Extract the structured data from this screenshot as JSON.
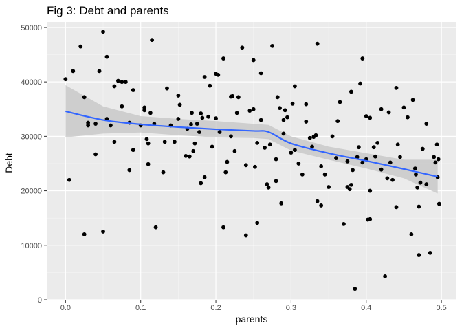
{
  "chart_data": {
    "type": "scatter",
    "title": "Fig 3: Debt and parents",
    "xlabel": "parents",
    "ylabel": "Debt",
    "xlim": [
      -0.025,
      0.52
    ],
    "ylim": [
      0,
      51000
    ],
    "x_ticks": [
      0.0,
      0.1,
      0.2,
      0.3,
      0.4,
      0.5
    ],
    "x_tick_labels": [
      "0.0",
      "0.1",
      "0.2",
      "0.3",
      "0.4",
      "0.5"
    ],
    "y_ticks": [
      0,
      10000,
      20000,
      30000,
      40000,
      50000
    ],
    "y_tick_labels": [
      "0",
      "10000",
      "20000",
      "30000",
      "40000",
      "50000"
    ],
    "grid": true,
    "legend": "none",
    "colors": {
      "panel": "#ebebeb",
      "grid_major": "#ffffff",
      "point": "#000000",
      "smooth_line": "#3366ff",
      "ribbon": "#c4c4c4"
    },
    "points": [
      [
        0.0,
        40500
      ],
      [
        0.005,
        22000
      ],
      [
        0.01,
        42000
      ],
      [
        0.02,
        46500
      ],
      [
        0.025,
        12000
      ],
      [
        0.025,
        37200
      ],
      [
        0.03,
        32000
      ],
      [
        0.03,
        32500
      ],
      [
        0.04,
        26700
      ],
      [
        0.04,
        32300
      ],
      [
        0.045,
        42000
      ],
      [
        0.05,
        49200
      ],
      [
        0.05,
        12500
      ],
      [
        0.055,
        44600
      ],
      [
        0.055,
        33200
      ],
      [
        0.06,
        32000
      ],
      [
        0.065,
        29000
      ],
      [
        0.065,
        39200
      ],
      [
        0.07,
        40200
      ],
      [
        0.075,
        40000
      ],
      [
        0.075,
        35500
      ],
      [
        0.08,
        40000
      ],
      [
        0.085,
        23800
      ],
      [
        0.085,
        32500
      ],
      [
        0.09,
        27500
      ],
      [
        0.09,
        38500
      ],
      [
        0.1,
        32000
      ],
      [
        0.105,
        35300
      ],
      [
        0.105,
        34800
      ],
      [
        0.108,
        29500
      ],
      [
        0.11,
        24900
      ],
      [
        0.11,
        28700
      ],
      [
        0.113,
        34300
      ],
      [
        0.115,
        47700
      ],
      [
        0.118,
        32300
      ],
      [
        0.12,
        13300
      ],
      [
        0.13,
        23400
      ],
      [
        0.132,
        29000
      ],
      [
        0.135,
        38800
      ],
      [
        0.14,
        32000
      ],
      [
        0.145,
        29000
      ],
      [
        0.15,
        33200
      ],
      [
        0.15,
        37500
      ],
      [
        0.152,
        35800
      ],
      [
        0.16,
        26400
      ],
      [
        0.162,
        31400
      ],
      [
        0.165,
        26300
      ],
      [
        0.167,
        32200
      ],
      [
        0.168,
        34300
      ],
      [
        0.17,
        27300
      ],
      [
        0.172,
        28700
      ],
      [
        0.175,
        32300
      ],
      [
        0.178,
        30800
      ],
      [
        0.18,
        34200
      ],
      [
        0.182,
        33400
      ],
      [
        0.18,
        21400
      ],
      [
        0.185,
        40900
      ],
      [
        0.185,
        22500
      ],
      [
        0.19,
        33600
      ],
      [
        0.192,
        39300
      ],
      [
        0.195,
        28100
      ],
      [
        0.2,
        41500
      ],
      [
        0.2,
        33300
      ],
      [
        0.203,
        41300
      ],
      [
        0.205,
        30800
      ],
      [
        0.21,
        13300
      ],
      [
        0.21,
        44300
      ],
      [
        0.213,
        23400
      ],
      [
        0.215,
        25300
      ],
      [
        0.22,
        30000
      ],
      [
        0.22,
        37300
      ],
      [
        0.222,
        37400
      ],
      [
        0.225,
        27300
      ],
      [
        0.228,
        34300
      ],
      [
        0.23,
        37200
      ],
      [
        0.235,
        46300
      ],
      [
        0.24,
        24700
      ],
      [
        0.24,
        11800
      ],
      [
        0.245,
        34700
      ],
      [
        0.25,
        44000
      ],
      [
        0.25,
        35000
      ],
      [
        0.252,
        24400
      ],
      [
        0.255,
        28800
      ],
      [
        0.255,
        14100
      ],
      [
        0.26,
        41600
      ],
      [
        0.26,
        33000
      ],
      [
        0.265,
        27900
      ],
      [
        0.268,
        21200
      ],
      [
        0.27,
        20600
      ],
      [
        0.272,
        28500
      ],
      [
        0.275,
        46600
      ],
      [
        0.28,
        21800
      ],
      [
        0.28,
        25800
      ],
      [
        0.282,
        37200
      ],
      [
        0.285,
        35200
      ],
      [
        0.287,
        17700
      ],
      [
        0.29,
        30500
      ],
      [
        0.29,
        33000
      ],
      [
        0.292,
        34800
      ],
      [
        0.295,
        33500
      ],
      [
        0.3,
        27000
      ],
      [
        0.302,
        36000
      ],
      [
        0.305,
        39200
      ],
      [
        0.305,
        27500
      ],
      [
        0.31,
        25000
      ],
      [
        0.315,
        23000
      ],
      [
        0.32,
        32700
      ],
      [
        0.32,
        35900
      ],
      [
        0.325,
        29700
      ],
      [
        0.328,
        28100
      ],
      [
        0.33,
        29900
      ],
      [
        0.333,
        30200
      ],
      [
        0.335,
        47000
      ],
      [
        0.335,
        18100
      ],
      [
        0.34,
        17300
      ],
      [
        0.34,
        24500
      ],
      [
        0.345,
        23000
      ],
      [
        0.35,
        20700
      ],
      [
        0.355,
        30000
      ],
      [
        0.36,
        26000
      ],
      [
        0.362,
        32800
      ],
      [
        0.365,
        36300
      ],
      [
        0.37,
        13900
      ],
      [
        0.375,
        25400
      ],
      [
        0.375,
        20700
      ],
      [
        0.378,
        20300
      ],
      [
        0.38,
        38200
      ],
      [
        0.38,
        21100
      ],
      [
        0.382,
        23800
      ],
      [
        0.385,
        2000
      ],
      [
        0.388,
        26200
      ],
      [
        0.39,
        28000
      ],
      [
        0.392,
        39700
      ],
      [
        0.395,
        44300
      ],
      [
        0.395,
        25200
      ],
      [
        0.4,
        33700
      ],
      [
        0.4,
        25800
      ],
      [
        0.402,
        14700
      ],
      [
        0.405,
        14800
      ],
      [
        0.405,
        20000
      ],
      [
        0.405,
        33400
      ],
      [
        0.41,
        28000
      ],
      [
        0.412,
        26300
      ],
      [
        0.415,
        28800
      ],
      [
        0.42,
        23900
      ],
      [
        0.42,
        35000
      ],
      [
        0.425,
        4300
      ],
      [
        0.428,
        22300
      ],
      [
        0.43,
        34400
      ],
      [
        0.432,
        25200
      ],
      [
        0.435,
        22000
      ],
      [
        0.44,
        38900
      ],
      [
        0.44,
        17000
      ],
      [
        0.442,
        28500
      ],
      [
        0.445,
        26200
      ],
      [
        0.45,
        35300
      ],
      [
        0.455,
        33500
      ],
      [
        0.46,
        12000
      ],
      [
        0.462,
        36700
      ],
      [
        0.465,
        24100
      ],
      [
        0.466,
        23000
      ],
      [
        0.468,
        20600
      ],
      [
        0.47,
        8200
      ],
      [
        0.47,
        17100
      ],
      [
        0.472,
        21500
      ],
      [
        0.475,
        27700
      ],
      [
        0.48,
        32300
      ],
      [
        0.48,
        21200
      ],
      [
        0.485,
        8600
      ],
      [
        0.49,
        26200
      ],
      [
        0.492,
        25200
      ],
      [
        0.494,
        28500
      ],
      [
        0.495,
        22500
      ],
      [
        0.496,
        25800
      ],
      [
        0.497,
        17600
      ]
    ],
    "smooth": {
      "x": [
        0.0,
        0.05,
        0.1,
        0.15,
        0.2,
        0.25,
        0.27,
        0.3,
        0.35,
        0.4,
        0.45,
        0.495
      ],
      "y": [
        34600,
        33000,
        32200,
        31700,
        31300,
        31000,
        30800,
        28700,
        26900,
        25500,
        24000,
        22600
      ],
      "lower": [
        29800,
        30500,
        30700,
        30200,
        29800,
        29700,
        29500,
        27400,
        25700,
        24100,
        22300,
        19500
      ],
      "upper": [
        39400,
        35500,
        33700,
        33200,
        32800,
        32300,
        32100,
        30000,
        28100,
        26900,
        25700,
        25700
      ]
    }
  }
}
